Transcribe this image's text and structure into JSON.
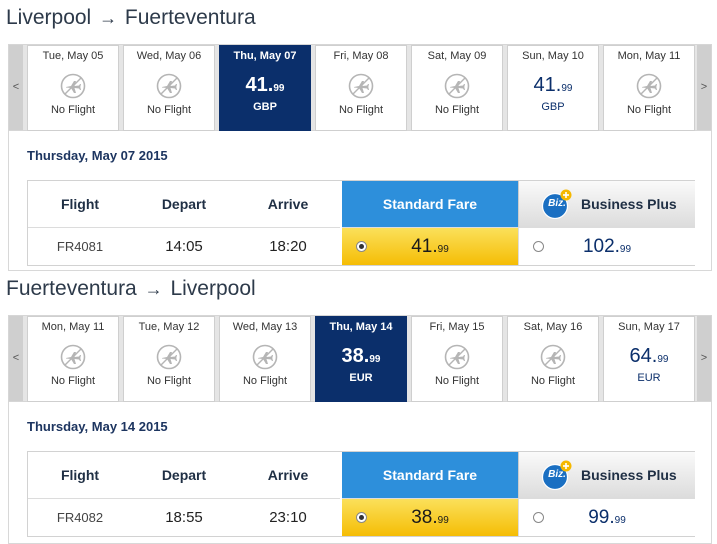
{
  "outbound": {
    "route": {
      "from": "Liverpool",
      "arrow": "→",
      "to": "Fuerteventura"
    },
    "nav": {
      "prev": "<",
      "next": ">"
    },
    "days": [
      {
        "label": "Tue, May 05",
        "status": "No Flight"
      },
      {
        "label": "Wed, May 06",
        "status": "No Flight"
      },
      {
        "label": "Thu, May 07",
        "price_int": "41.",
        "price_dec": "99",
        "currency": "GBP",
        "selected": true
      },
      {
        "label": "Fri, May 08",
        "status": "No Flight"
      },
      {
        "label": "Sat, May 09",
        "status": "No Flight"
      },
      {
        "label": "Sun, May 10",
        "price_int": "41.",
        "price_dec": "99",
        "currency": "GBP"
      },
      {
        "label": "Mon, May 11",
        "status": "No Flight"
      }
    ],
    "date_heading": "Thursday, May 07 2015",
    "table": {
      "headers": {
        "flight": "Flight",
        "depart": "Depart",
        "arrive": "Arrive",
        "standard": "Standard Fare",
        "business": "Business Plus",
        "biz_logo": "Biz."
      },
      "row": {
        "flight": "FR4081",
        "depart": "14:05",
        "arrive": "18:20",
        "standard_int": "41.",
        "standard_dec": "99",
        "business_int": "102.",
        "business_dec": "99"
      }
    }
  },
  "inbound": {
    "route": {
      "from": "Fuerteventura",
      "arrow": "→",
      "to": "Liverpool"
    },
    "nav": {
      "prev": "<",
      "next": ">"
    },
    "days": [
      {
        "label": "Mon, May 11",
        "status": "No Flight"
      },
      {
        "label": "Tue, May 12",
        "status": "No Flight"
      },
      {
        "label": "Wed, May 13",
        "status": "No Flight"
      },
      {
        "label": "Thu, May 14",
        "price_int": "38.",
        "price_dec": "99",
        "currency": "EUR",
        "selected": true
      },
      {
        "label": "Fri, May 15",
        "status": "No Flight"
      },
      {
        "label": "Sat, May 16",
        "status": "No Flight"
      },
      {
        "label": "Sun, May 17",
        "price_int": "64.",
        "price_dec": "99",
        "currency": "EUR"
      }
    ],
    "date_heading": "Thursday, May 14 2015",
    "table": {
      "headers": {
        "flight": "Flight",
        "depart": "Depart",
        "arrive": "Arrive",
        "standard": "Standard Fare",
        "business": "Business Plus",
        "biz_logo": "Biz."
      },
      "row": {
        "flight": "FR4082",
        "depart": "18:55",
        "arrive": "23:10",
        "standard_int": "38.",
        "standard_dec": "99",
        "business_int": "99.",
        "business_dec": "99"
      }
    }
  },
  "icons": {
    "plane": "no-flight-plane-icon",
    "biz": "biz-plus-logo-icon"
  },
  "colors": {
    "selected_day": "#0b2f6b",
    "standard_header": "#2d8fdb",
    "standard_cell": "#f5bd05",
    "biz_badge": "#1a6fc2",
    "biz_plus": "#f5b800"
  }
}
